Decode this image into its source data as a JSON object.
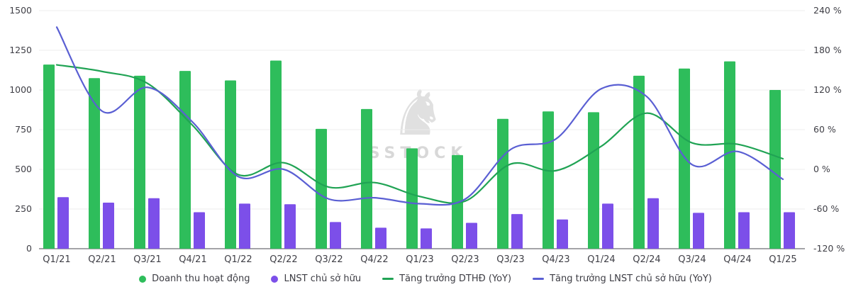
{
  "chart_data": {
    "type": "combo-bar-line",
    "title": "",
    "categories": [
      "Q1/21",
      "Q2/21",
      "Q3/21",
      "Q4/21",
      "Q1/22",
      "Q2/22",
      "Q3/22",
      "Q4/22",
      "Q1/23",
      "Q2/23",
      "Q3/23",
      "Q4/23",
      "Q1/24",
      "Q2/24",
      "Q3/24",
      "Q4/24",
      "Q1/25"
    ],
    "series": [
      {
        "name": "Doanh thu hoạt động",
        "type": "bar",
        "axis": "left",
        "color": "#2ebd5b",
        "values": [
          1160,
          1075,
          1090,
          1120,
          1060,
          1185,
          755,
          880,
          632,
          590,
          818,
          865,
          860,
          1090,
          1135,
          1180,
          1000
        ]
      },
      {
        "name": "LNST chủ sở hữu",
        "type": "bar",
        "axis": "left",
        "color": "#7c4fe9",
        "values": [
          325,
          290,
          318,
          230,
          284,
          280,
          168,
          132,
          128,
          163,
          218,
          184,
          284,
          318,
          226,
          230,
          230
        ]
      },
      {
        "name": "Tăng trưởng DTHĐ (YoY)",
        "type": "line",
        "axis": "right",
        "color": "#20a354",
        "values": [
          158,
          148,
          130,
          66,
          -8,
          10,
          -27,
          -20,
          -41,
          -48,
          8,
          -2,
          35,
          85,
          40,
          38,
          16
        ]
      },
      {
        "name": "Tăng trưởng LNST chủ sở hữu (YoY)",
        "type": "line",
        "axis": "right",
        "color": "#5a5fd3",
        "values": [
          215,
          88,
          124,
          71,
          -11,
          0,
          -45,
          -43,
          -52,
          -45,
          30,
          46,
          122,
          110,
          7,
          27,
          -15
        ]
      }
    ],
    "left_axis": {
      "min": 0,
      "max": 1500,
      "tick_values": [
        1500,
        1250,
        1000,
        750,
        500,
        250,
        0
      ],
      "tick_labels": [
        "1500",
        "1250",
        "1000",
        "750",
        "500",
        "250",
        "0"
      ]
    },
    "right_axis": {
      "min": -120,
      "max": 240,
      "tick_values": [
        240,
        180,
        120,
        60,
        0,
        -60,
        -120
      ],
      "tick_labels": [
        "240 %",
        "180 %",
        "120 %",
        "60 %",
        "0 %",
        "-60 %",
        "-120 %"
      ]
    },
    "grid": true,
    "legend_position": "bottom"
  },
  "watermark": {
    "text": "SSTOCK",
    "logo": "horse-icon"
  },
  "colors": {
    "background": "#ffffff",
    "grid": "#ececec",
    "axis_line": "#4a4a50",
    "tick_text": "#3f3f46",
    "watermark": "#d8d8d8"
  }
}
